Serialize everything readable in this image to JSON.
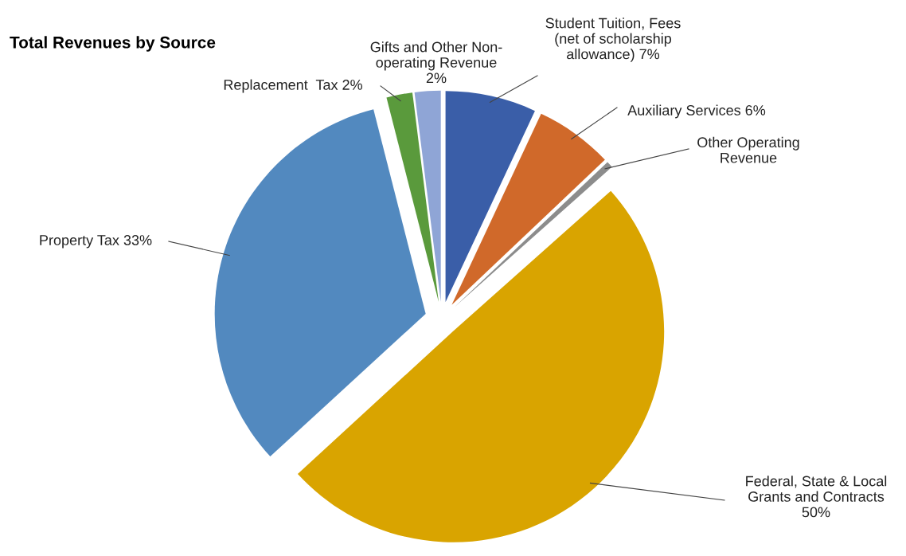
{
  "chart_data": {
    "type": "pie",
    "title": "Total Revenues by Source",
    "categories": [
      "Student Tuition, Fees\n(net of scholarship\nallowance) 7%",
      "Auxiliary Services 6%",
      "Other Operating\nRevenue",
      "Federal, State & Local\nGrants and Contracts\n50%",
      "Property Tax 33%",
      "Replacement  Tax 2%",
      "Gifts and Other Non-\noperating Revenue\n2%"
    ],
    "values": [
      7,
      6,
      0.5,
      50,
      33,
      2,
      2
    ],
    "colors": [
      "#3a5ea8",
      "#d0692a",
      "#8c8c8c",
      "#d9a400",
      "#5289bf",
      "#5a9a3c",
      "#8fa5d6"
    ],
    "legend": false
  }
}
